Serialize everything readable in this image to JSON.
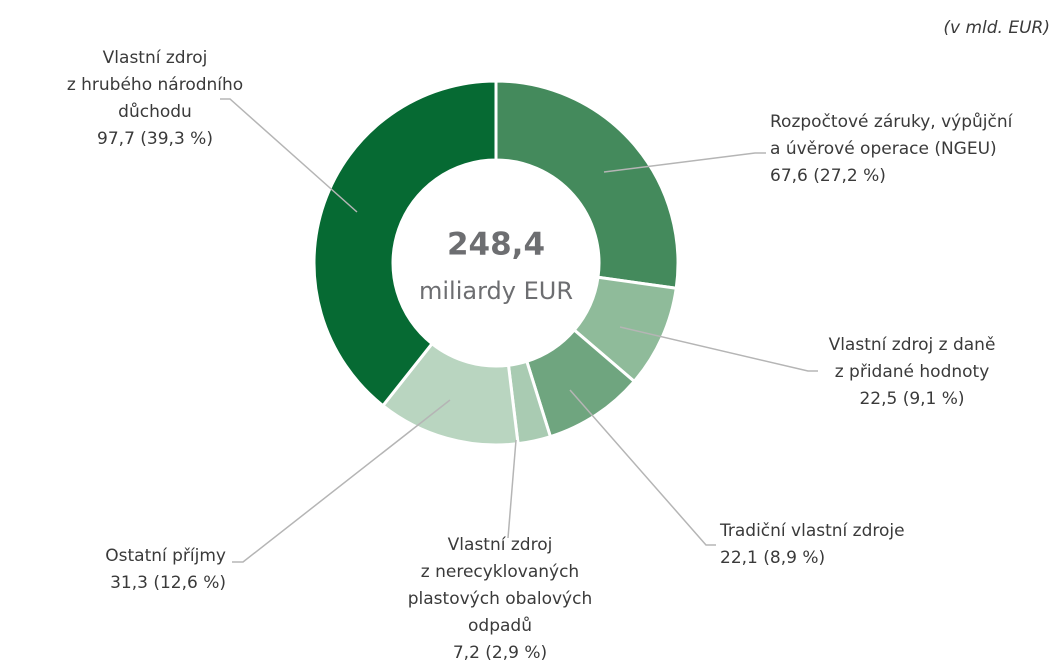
{
  "chart_data": {
    "type": "donut",
    "note": "(v mld. EUR)",
    "center_value": "248,4",
    "center_label": "miliardy EUR",
    "categories": [
      [
        "Rozpočtové záruky, výpůjční",
        "a úvěrové operace (NGEU)"
      ],
      [
        "Vlastní zdroj z daně",
        "z přidané hodnoty"
      ],
      [
        "Tradiční vlastní zdroje"
      ],
      [
        "Vlastní zdroj",
        "z nerecyklovaných",
        "plastových obalových",
        "odpadů"
      ],
      [
        "Ostatní příjmy"
      ],
      [
        "Vlastní zdroj",
        "z hrubého národního",
        "důchodu"
      ]
    ],
    "values": [
      67.6,
      22.5,
      22.1,
      7.2,
      31.3,
      97.7
    ],
    "value_labels": [
      "67,6 (27,2 %)",
      "22,5 (9,1 %)",
      "22,1 (8,9 %)",
      "7,2 (2,9 %)",
      "31,3 (12,6 %)",
      "97,7 (39,3 %)"
    ],
    "colors": [
      "#448a5c",
      "#8fbb9a",
      "#6fa57f",
      "#a9cbb2",
      "#b9d5c0",
      "#066a33"
    ]
  }
}
